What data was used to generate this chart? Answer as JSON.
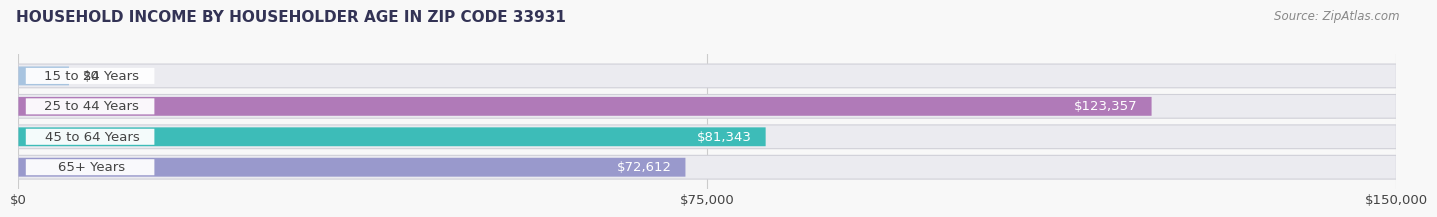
{
  "title": "HOUSEHOLD INCOME BY HOUSEHOLDER AGE IN ZIP CODE 33931",
  "source": "Source: ZipAtlas.com",
  "categories": [
    "15 to 24 Years",
    "25 to 44 Years",
    "45 to 64 Years",
    "65+ Years"
  ],
  "values": [
    0,
    123357,
    81343,
    72612
  ],
  "bar_colors": [
    "#a8c4e0",
    "#b07ab8",
    "#3dbcb8",
    "#9999cc"
  ],
  "row_bg_color": "#ebebf0",
  "xlim": [
    0,
    150000
  ],
  "xticks": [
    0,
    75000,
    150000
  ],
  "xtick_labels": [
    "$0",
    "$75,000",
    "$150,000"
  ],
  "label_fontsize": 9.5,
  "title_fontsize": 11,
  "source_fontsize": 8.5,
  "value_labels": [
    "$0",
    "$123,357",
    "$81,343",
    "$72,612"
  ],
  "bar_height": 0.62,
  "background_color": "#f8f8f8",
  "grid_color": "#cccccc",
  "text_color": "#444444",
  "source_color": "#888888",
  "title_color": "#333355"
}
